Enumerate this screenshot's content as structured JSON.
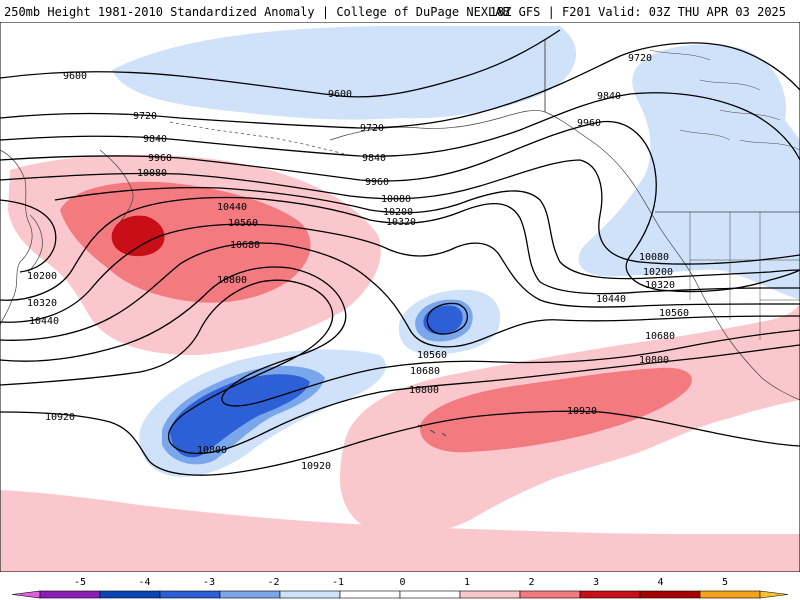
{
  "header": {
    "left": "250mb Height 1981-2010 Standardized Anomaly | College of DuPage NEXLAB",
    "right": "18Z GFS | F201 Valid: 03Z THU APR 03 2025"
  },
  "colors": {
    "anom_neg4": "#0b44b4",
    "anom_neg3": "#2d5fd6",
    "anom_neg2": "#7aa7ec",
    "anom_neg1": "#cfe2fa",
    "anom_pos1": "#fac8cc",
    "anom_pos2": "#f37a7f",
    "anom_pos3": "#c80e16",
    "contour": "#000000",
    "coast": "#444444"
  },
  "colorbar": {
    "ticks": [
      "-5",
      "-4",
      "-3",
      "-2",
      "-1",
      "0",
      "1",
      "2",
      "3",
      "4",
      "5"
    ],
    "colors": [
      "#e060e0",
      "#8a1fb8",
      "#0b44b4",
      "#2d5fd6",
      "#7aa7ec",
      "#cfe2fa",
      "#ffffff",
      "#ffffff",
      "#fac8cc",
      "#f37a7f",
      "#c80e16",
      "#a80000",
      "#f4a21a",
      "#f8c030"
    ]
  },
  "contour_labels": [
    "9600",
    "9600",
    "9720",
    "9720",
    "9720",
    "9840",
    "9840",
    "9840",
    "9960",
    "9960",
    "9960",
    "10080",
    "10080",
    "10080",
    "10200",
    "10200",
    "10200",
    "10320",
    "10320",
    "10320",
    "10440",
    "10440",
    "10440",
    "10560",
    "10560",
    "10560",
    "10680",
    "10680",
    "10680",
    "10800",
    "10800",
    "10800",
    "10800",
    "10920",
    "10920",
    "10920"
  ]
}
